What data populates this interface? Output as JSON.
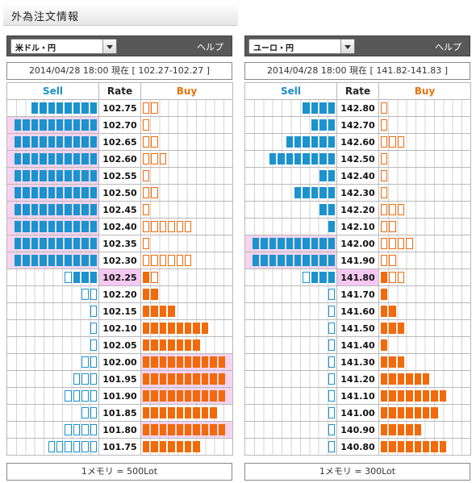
{
  "page": {
    "title": "外為注文情報"
  },
  "panels": [
    {
      "pair": "米ドル・円",
      "help": "ヘルプ",
      "status": "2014/04/28  18:00 現在 [ 102.27-102.27 ]",
      "headers": {
        "sell": "Sell",
        "rate": "Rate",
        "buy": "Buy"
      },
      "rows": [
        {
          "rate": "102.75",
          "sf": 8,
          "so": 0,
          "bf": 0,
          "bo": 2,
          "shl": false,
          "bhl": false,
          "current": false
        },
        {
          "rate": "102.70",
          "sf": 10,
          "so": 0,
          "bf": 0,
          "bo": 1,
          "shl": true,
          "bhl": false,
          "current": false
        },
        {
          "rate": "102.65",
          "sf": 10,
          "so": 0,
          "bf": 0,
          "bo": 2,
          "shl": true,
          "bhl": false,
          "current": false
        },
        {
          "rate": "102.60",
          "sf": 10,
          "so": 0,
          "bf": 0,
          "bo": 3,
          "shl": true,
          "bhl": false,
          "current": false
        },
        {
          "rate": "102.55",
          "sf": 10,
          "so": 0,
          "bf": 0,
          "bo": 1,
          "shl": true,
          "bhl": false,
          "current": false
        },
        {
          "rate": "102.50",
          "sf": 10,
          "so": 0,
          "bf": 0,
          "bo": 2,
          "shl": true,
          "bhl": false,
          "current": false
        },
        {
          "rate": "102.45",
          "sf": 10,
          "so": 0,
          "bf": 0,
          "bo": 1,
          "shl": true,
          "bhl": false,
          "current": false
        },
        {
          "rate": "102.40",
          "sf": 10,
          "so": 0,
          "bf": 0,
          "bo": 6,
          "shl": true,
          "bhl": false,
          "current": false
        },
        {
          "rate": "102.35",
          "sf": 10,
          "so": 0,
          "bf": 0,
          "bo": 1,
          "shl": true,
          "bhl": false,
          "current": false
        },
        {
          "rate": "102.30",
          "sf": 10,
          "so": 0,
          "bf": 0,
          "bo": 6,
          "shl": true,
          "bhl": false,
          "current": false
        },
        {
          "rate": "102.25",
          "sf": 3,
          "so": 1,
          "bf": 1,
          "bo": 1,
          "shl": false,
          "bhl": false,
          "current": true
        },
        {
          "rate": "102.20",
          "sf": 0,
          "so": 2,
          "bf": 2,
          "bo": 0,
          "shl": false,
          "bhl": false,
          "current": false
        },
        {
          "rate": "102.15",
          "sf": 0,
          "so": 1,
          "bf": 4,
          "bo": 0,
          "shl": false,
          "bhl": false,
          "current": false
        },
        {
          "rate": "102.10",
          "sf": 0,
          "so": 1,
          "bf": 8,
          "bo": 0,
          "shl": false,
          "bhl": false,
          "current": false
        },
        {
          "rate": "102.05",
          "sf": 0,
          "so": 1,
          "bf": 7,
          "bo": 0,
          "shl": false,
          "bhl": false,
          "current": false
        },
        {
          "rate": "102.00",
          "sf": 0,
          "so": 2,
          "bf": 10,
          "bo": 0,
          "shl": false,
          "bhl": true,
          "current": false
        },
        {
          "rate": "101.95",
          "sf": 0,
          "so": 3,
          "bf": 10,
          "bo": 0,
          "shl": false,
          "bhl": true,
          "current": false
        },
        {
          "rate": "101.90",
          "sf": 0,
          "so": 4,
          "bf": 10,
          "bo": 0,
          "shl": false,
          "bhl": true,
          "current": false
        },
        {
          "rate": "101.85",
          "sf": 0,
          "so": 2,
          "bf": 9,
          "bo": 0,
          "shl": false,
          "bhl": false,
          "current": false
        },
        {
          "rate": "101.80",
          "sf": 0,
          "so": 4,
          "bf": 10,
          "bo": 0,
          "shl": false,
          "bhl": true,
          "current": false
        },
        {
          "rate": "101.75",
          "sf": 0,
          "so": 6,
          "bf": 7,
          "bo": 0,
          "shl": false,
          "bhl": false,
          "current": false
        }
      ],
      "footer": "1メモリ = 500Lot"
    },
    {
      "pair": "ユーロ・円",
      "help": "ヘルプ",
      "status": "2014/04/28  18:00 現在 [ 141.82-141.83 ]",
      "headers": {
        "sell": "Sell",
        "rate": "Rate",
        "buy": "Buy"
      },
      "rows": [
        {
          "rate": "142.80",
          "sf": 4,
          "so": 0,
          "bf": 0,
          "bo": 1,
          "shl": false,
          "bhl": false,
          "current": false
        },
        {
          "rate": "142.70",
          "sf": 3,
          "so": 0,
          "bf": 0,
          "bo": 1,
          "shl": false,
          "bhl": false,
          "current": false
        },
        {
          "rate": "142.60",
          "sf": 6,
          "so": 0,
          "bf": 0,
          "bo": 3,
          "shl": false,
          "bhl": false,
          "current": false
        },
        {
          "rate": "142.50",
          "sf": 8,
          "so": 0,
          "bf": 0,
          "bo": 1,
          "shl": false,
          "bhl": false,
          "current": false
        },
        {
          "rate": "142.40",
          "sf": 2,
          "so": 0,
          "bf": 0,
          "bo": 1,
          "shl": false,
          "bhl": false,
          "current": false
        },
        {
          "rate": "142.30",
          "sf": 5,
          "so": 0,
          "bf": 0,
          "bo": 1,
          "shl": false,
          "bhl": false,
          "current": false
        },
        {
          "rate": "142.20",
          "sf": 2,
          "so": 0,
          "bf": 0,
          "bo": 3,
          "shl": false,
          "bhl": false,
          "current": false
        },
        {
          "rate": "142.10",
          "sf": 1,
          "so": 0,
          "bf": 0,
          "bo": 2,
          "shl": false,
          "bhl": false,
          "current": false
        },
        {
          "rate": "142.00",
          "sf": 10,
          "so": 0,
          "bf": 0,
          "bo": 4,
          "shl": true,
          "bhl": false,
          "current": false
        },
        {
          "rate": "141.90",
          "sf": 10,
          "so": 0,
          "bf": 0,
          "bo": 2,
          "shl": true,
          "bhl": false,
          "current": false
        },
        {
          "rate": "141.80",
          "sf": 3,
          "so": 1,
          "bf": 1,
          "bo": 2,
          "shl": false,
          "bhl": false,
          "current": true
        },
        {
          "rate": "141.70",
          "sf": 0,
          "so": 1,
          "bf": 1,
          "bo": 0,
          "shl": false,
          "bhl": false,
          "current": false
        },
        {
          "rate": "141.60",
          "sf": 0,
          "so": 1,
          "bf": 2,
          "bo": 0,
          "shl": false,
          "bhl": false,
          "current": false
        },
        {
          "rate": "141.50",
          "sf": 0,
          "so": 1,
          "bf": 3,
          "bo": 0,
          "shl": false,
          "bhl": false,
          "current": false
        },
        {
          "rate": "141.40",
          "sf": 0,
          "so": 1,
          "bf": 1,
          "bo": 0,
          "shl": false,
          "bhl": false,
          "current": false
        },
        {
          "rate": "141.30",
          "sf": 0,
          "so": 1,
          "bf": 3,
          "bo": 0,
          "shl": false,
          "bhl": false,
          "current": false
        },
        {
          "rate": "141.20",
          "sf": 0,
          "so": 1,
          "bf": 6,
          "bo": 0,
          "shl": false,
          "bhl": false,
          "current": false
        },
        {
          "rate": "141.10",
          "sf": 0,
          "so": 1,
          "bf": 8,
          "bo": 0,
          "shl": false,
          "bhl": false,
          "current": false
        },
        {
          "rate": "141.00",
          "sf": 0,
          "so": 1,
          "bf": 7,
          "bo": 0,
          "shl": false,
          "bhl": false,
          "current": false
        },
        {
          "rate": "140.90",
          "sf": 0,
          "so": 1,
          "bf": 5,
          "bo": 0,
          "shl": false,
          "bhl": false,
          "current": false
        },
        {
          "rate": "140.80",
          "sf": 0,
          "so": 1,
          "bf": 8,
          "bo": 0,
          "shl": false,
          "bhl": false,
          "current": false
        }
      ],
      "footer": "1メモリ = 300Lot"
    }
  ]
}
